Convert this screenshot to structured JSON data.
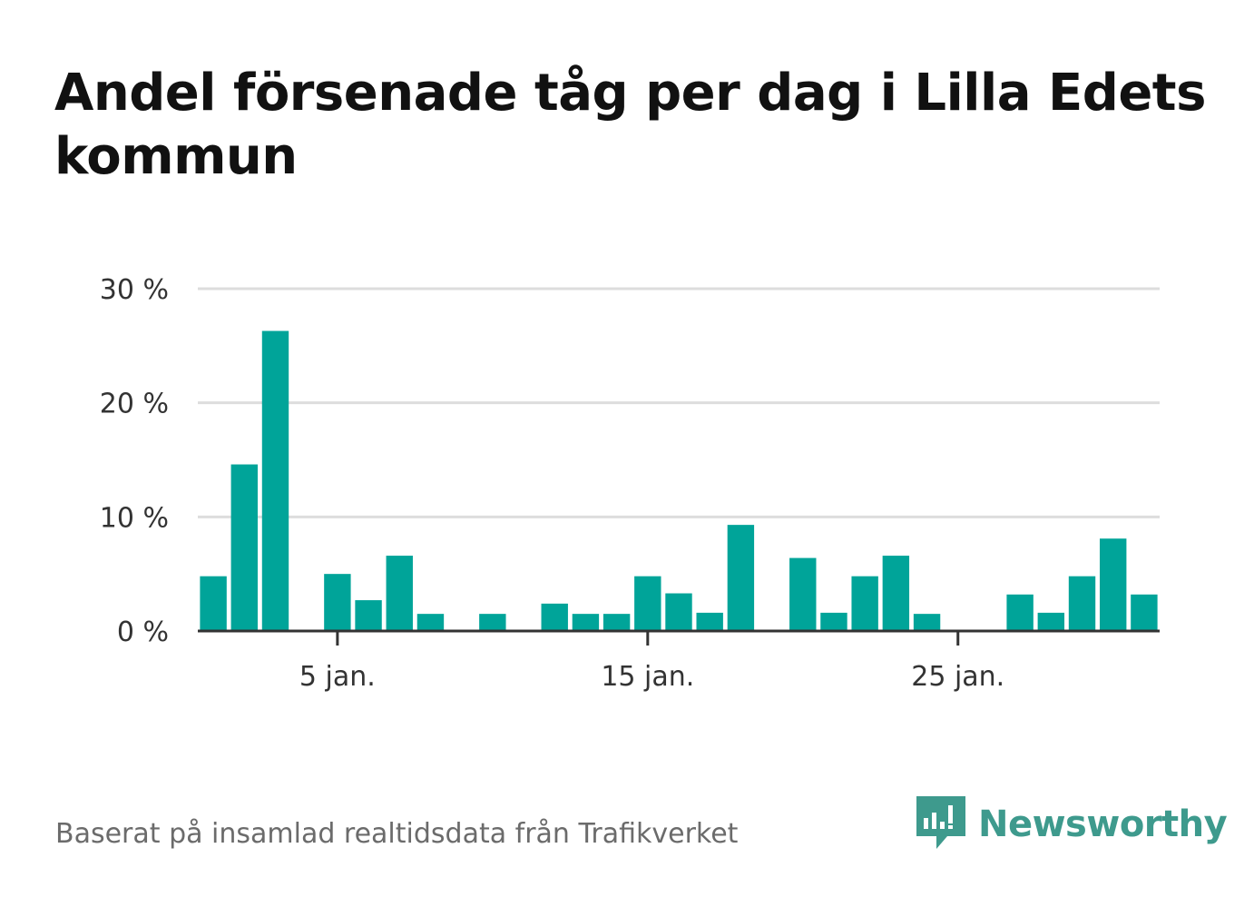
{
  "title": "Andel försenade tåg per dag i Lilla Edets kommun",
  "source": "Baserat på insamlad realtidsdata från Trafikverket",
  "brand": {
    "name": "Newsworthy",
    "icon": "newsworthy-logo-icon",
    "color": "#3e9a8d"
  },
  "colors": {
    "bar": "#00a499",
    "grid": "#dddddd",
    "axis": "#333333"
  },
  "chart_data": {
    "type": "bar",
    "x": [
      1,
      2,
      3,
      4,
      5,
      6,
      7,
      8,
      9,
      10,
      11,
      12,
      13,
      14,
      15,
      16,
      17,
      18,
      19,
      20,
      21,
      22,
      23,
      24,
      25,
      26,
      27,
      28,
      29,
      30,
      31
    ],
    "values": [
      4.8,
      14.6,
      26.3,
      0,
      5.0,
      2.7,
      6.6,
      1.5,
      0,
      1.5,
      0,
      2.4,
      1.5,
      1.5,
      4.8,
      3.3,
      1.6,
      9.3,
      0,
      6.4,
      1.6,
      4.8,
      6.6,
      1.5,
      0,
      0,
      3.2,
      1.6,
      4.8,
      8.1,
      3.2
    ],
    "xticks": [
      {
        "value": 5,
        "label": "5 jan."
      },
      {
        "value": 15,
        "label": "15 jan."
      },
      {
        "value": 25,
        "label": "25 jan."
      }
    ],
    "yticks": [
      {
        "value": 0,
        "label": "0 %"
      },
      {
        "value": 10,
        "label": "10 %"
      },
      {
        "value": 20,
        "label": "20 %"
      },
      {
        "value": 30,
        "label": "30 %"
      }
    ],
    "ylim": [
      0,
      30
    ],
    "xlim": [
      0.5,
      31.5
    ],
    "grid": true,
    "unit": "%"
  }
}
